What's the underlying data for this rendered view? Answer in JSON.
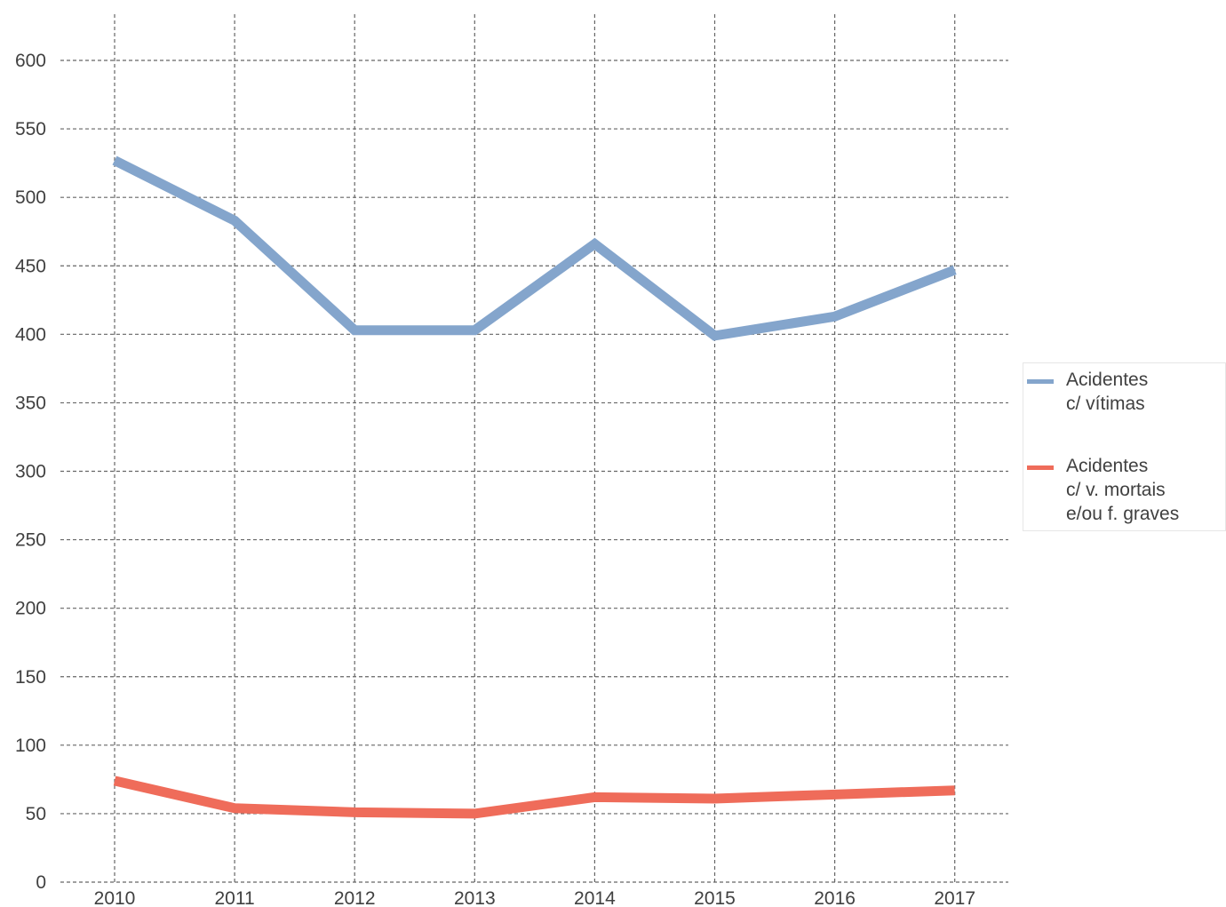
{
  "chart_data": {
    "type": "line",
    "title": "",
    "xlabel": "",
    "ylabel": "",
    "categories": [
      "2010",
      "2011",
      "2012",
      "2013",
      "2014",
      "2015",
      "2016",
      "2017"
    ],
    "ylim": [
      0,
      600
    ],
    "yticks": [
      "0",
      "50",
      "100",
      "150",
      "200",
      "250",
      "300",
      "350",
      "400",
      "450",
      "500",
      "550",
      "600"
    ],
    "grid": true,
    "legend_position": "right",
    "series": [
      {
        "name_lines": [
          "Acidentes",
          "c/ vítimas"
        ],
        "color": "#84a5cc",
        "values": [
          527,
          483,
          403,
          403,
          466,
          399,
          413,
          447
        ]
      },
      {
        "name_lines": [
          "Acidentes",
          "c/ v. mortais",
          "e/ou f. graves"
        ],
        "color": "#ef6c5a",
        "values": [
          74,
          54,
          51,
          50,
          62,
          61,
          64,
          67
        ]
      }
    ]
  }
}
